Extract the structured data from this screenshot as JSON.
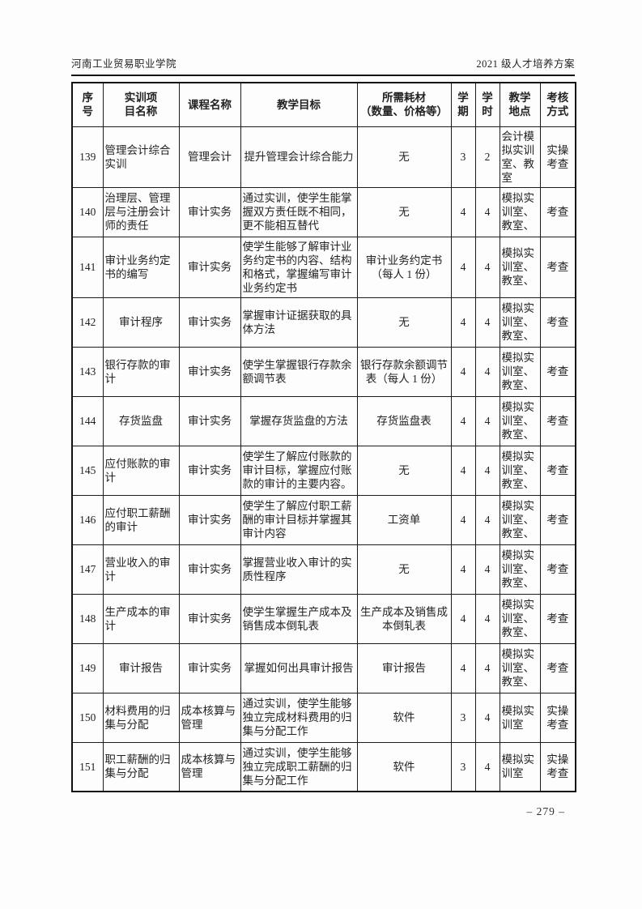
{
  "page_header": {
    "left": "河南工业贸易职业学院",
    "right": "2021 级人才培养方案"
  },
  "table": {
    "headers": {
      "seq": "序\n号",
      "project": "实训项\n目名称",
      "course": "课程名称",
      "goal": "教学目标",
      "consumables": "所需耗材\n（数量、价格等）",
      "semester": "学\n期",
      "hours": "学\n时",
      "location": "教学\n地点",
      "assessment": "考核\n方式"
    },
    "rows": [
      {
        "seq": "139",
        "project": "管理会计综合实训",
        "course": "管理会计",
        "goal": "提升管理会计综合能力",
        "consumables": "无",
        "semester": "3",
        "hours": "2",
        "location": "会计模拟实训室、教室",
        "assessment": "实操考查"
      },
      {
        "seq": "140",
        "project": "治理层、管理层与注册会计师的责任",
        "course": "审计实务",
        "goal": "通过实训，使学生能掌握双方责任既不相同，更不能相互替代",
        "consumables": "无",
        "semester": "4",
        "hours": "4",
        "location": "模拟实训室、教室、",
        "assessment": "考查"
      },
      {
        "seq": "141",
        "project": "审计业务约定书的编写",
        "course": "审计实务",
        "goal": "使学生能够了解审计业务约定书的内容、结构和格式，掌握编写审计业务约定书",
        "consumables": "审计业务约定书（每人 1 份）",
        "semester": "4",
        "hours": "4",
        "location": "模拟实训室、教室、",
        "assessment": "考查"
      },
      {
        "seq": "142",
        "project": "审计程序",
        "course": "审计实务",
        "goal": "掌握审计证据获取的具体方法",
        "consumables": "无",
        "semester": "4",
        "hours": "4",
        "location": "模拟实训室、教室、",
        "assessment": "考查"
      },
      {
        "seq": "143",
        "project": "银行存款的审计",
        "course": "审计实务",
        "goal": "使学生掌握银行存款余额调节表",
        "consumables": "银行存款余额调节表（每人 1 份）",
        "semester": "4",
        "hours": "4",
        "location": "模拟实训室、教室、",
        "assessment": "考查"
      },
      {
        "seq": "144",
        "project": "存货监盘",
        "course": "审计实务",
        "goal": "掌握存货监盘的方法",
        "consumables": "存货监盘表",
        "semester": "4",
        "hours": "4",
        "location": "模拟实训室、教室、",
        "assessment": "考查"
      },
      {
        "seq": "145",
        "project": "应付账款的审计",
        "course": "审计实务",
        "goal": "使学生了解应付账款的审计目标，掌握应付账款的审计的主要内容。",
        "consumables": "无",
        "semester": "4",
        "hours": "4",
        "location": "模拟实训室、教室、",
        "assessment": "考查"
      },
      {
        "seq": "146",
        "project": "应付职工薪酬的审计",
        "course": "审计实务",
        "goal": "使学生了解应付职工薪酬的审计目标并掌握其审计内容",
        "consumables": "工资单",
        "semester": "4",
        "hours": "4",
        "location": "模拟实训室、教室、",
        "assessment": "考查"
      },
      {
        "seq": "147",
        "project": "营业收入的审计",
        "course": "审计实务",
        "goal": "掌握营业收入审计的实质性程序",
        "consumables": "无",
        "semester": "4",
        "hours": "4",
        "location": "模拟实训室、教室、",
        "assessment": "考查"
      },
      {
        "seq": "148",
        "project": "生产成本的审计",
        "course": "审计实务",
        "goal": "使学生掌握生产成本及销售成本倒轧表",
        "consumables": "生产成本及销售成本倒轧表",
        "semester": "4",
        "hours": "4",
        "location": "模拟实训室、教室、",
        "assessment": "考查"
      },
      {
        "seq": "149",
        "project": "审计报告",
        "course": "审计实务",
        "goal": "掌握如何出具审计报告",
        "consumables": "审计报告",
        "semester": "4",
        "hours": "4",
        "location": "模拟实训室、教室、",
        "assessment": "考查"
      },
      {
        "seq": "150",
        "project": "材料费用的归集与分配",
        "course": "成本核算与管理",
        "goal": "通过实训，使学生能够独立完成材料费用的归集与分配工作",
        "consumables": "软件",
        "semester": "3",
        "hours": "4",
        "location": "模拟实训室",
        "assessment": "实操考查"
      },
      {
        "seq": "151",
        "project": "职工薪酬的归集与分配",
        "course": "成本核算与管理",
        "goal": "通过实训，使学生能够独立完成职工薪酬的归集与分配工作",
        "consumables": "软件",
        "semester": "3",
        "hours": "4",
        "location": "模拟实训室",
        "assessment": "实操考查"
      }
    ]
  },
  "footer": {
    "page_number": "– 279 –"
  }
}
